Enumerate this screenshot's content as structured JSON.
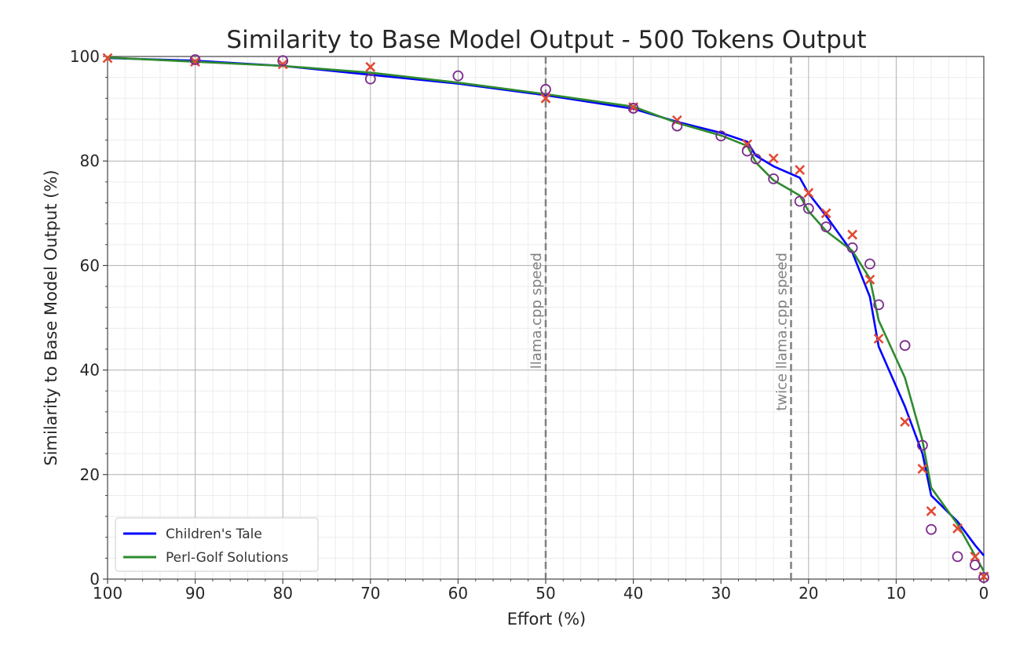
{
  "chart_data": {
    "type": "line",
    "title": "Similarity to Base Model Output - 500 Tokens Output",
    "xlabel": "Effort (%)",
    "ylabel": "Similarity to Base Model Output (%)",
    "xlim": [
      100,
      0
    ],
    "ylim": [
      0,
      100
    ],
    "x_reversed": true,
    "xticks": [
      100,
      90,
      80,
      70,
      60,
      50,
      40,
      30,
      20,
      10,
      0
    ],
    "yticks": [
      0,
      20,
      40,
      60,
      80,
      100
    ],
    "grid": true,
    "minor_grid": true,
    "legend_position": "lower-left",
    "series": [
      {
        "name": "Children's Tale",
        "color": "#0000ff",
        "x": [
          100,
          90,
          80,
          70,
          60,
          50,
          40,
          35,
          30,
          27,
          26,
          24,
          21,
          20,
          18,
          15,
          13,
          12,
          9,
          7,
          6,
          3,
          1,
          0
        ],
        "y": [
          99.7,
          99.2,
          98.2,
          96.5,
          94.8,
          92.6,
          90.0,
          87.5,
          85.4,
          83.7,
          81.0,
          79.0,
          76.8,
          73.8,
          69.5,
          62.5,
          54.0,
          44.5,
          33.0,
          24.0,
          16.0,
          11.0,
          6.5,
          4.5
        ]
      },
      {
        "name": "Perl-Golf Solutions",
        "color": "#2e8b2e",
        "x": [
          100,
          90,
          80,
          70,
          60,
          50,
          40,
          35,
          30,
          27,
          26,
          24,
          21,
          20,
          18,
          15,
          13,
          12,
          9,
          7,
          6,
          3,
          1,
          0
        ],
        "y": [
          99.8,
          99.0,
          98.2,
          96.9,
          95.0,
          92.8,
          90.4,
          87.3,
          84.9,
          82.9,
          79.7,
          76.3,
          73.4,
          70.4,
          66.6,
          62.8,
          57.5,
          49.5,
          38.5,
          26.5,
          17.5,
          10.5,
          4.5,
          1.5
        ]
      }
    ],
    "markers_x": {
      "color": "#e24a33",
      "x": [
        100,
        90,
        80,
        70,
        50,
        40,
        35,
        27,
        24,
        21,
        20,
        18,
        15,
        13,
        12,
        9,
        7,
        6,
        3,
        1,
        0
      ],
      "y": [
        99.7,
        99.0,
        98.5,
        98.0,
        92.0,
        90.3,
        87.8,
        83.2,
        80.5,
        78.3,
        73.9,
        70.0,
        65.9,
        57.3,
        46.0,
        30.1,
        21.1,
        13.0,
        9.7,
        4.3,
        0.5
      ]
    },
    "markers_o": {
      "color": "#7b2c8a",
      "x": [
        90,
        80,
        70,
        60,
        50,
        40,
        35,
        30,
        27,
        26,
        24,
        21,
        20,
        18,
        15,
        13,
        12,
        9,
        7,
        6,
        3,
        1,
        0
      ],
      "y": [
        99.4,
        99.2,
        95.7,
        96.3,
        93.7,
        90.1,
        86.7,
        84.8,
        81.9,
        80.4,
        76.6,
        72.3,
        70.9,
        67.4,
        63.4,
        60.3,
        52.5,
        44.7,
        25.6,
        9.5,
        4.3,
        2.7,
        0.3
      ]
    },
    "reference_lines": [
      {
        "x": 50,
        "label": "llama.cpp speed"
      },
      {
        "x": 22,
        "label": "twice llama.cpp speed"
      }
    ]
  }
}
